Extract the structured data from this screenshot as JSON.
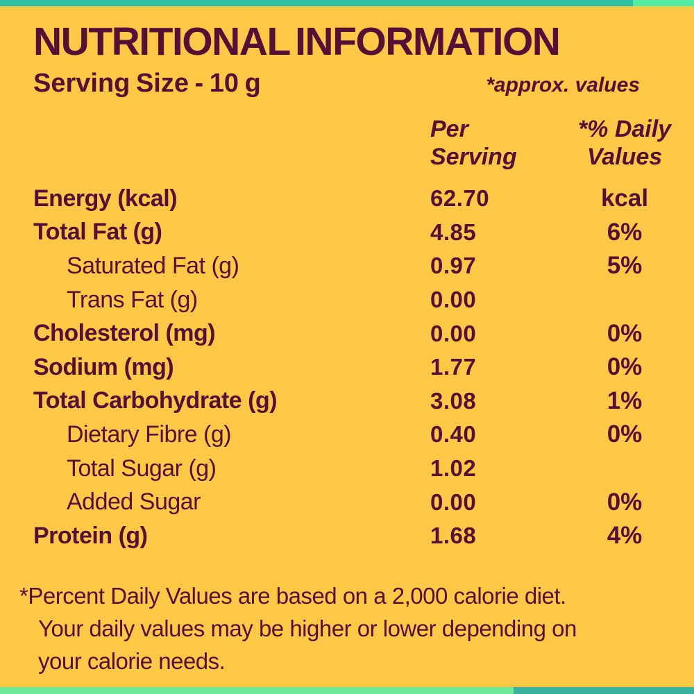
{
  "theme": {
    "background": "#FCC845",
    "text": "#561038",
    "top_strip_teal": "#2FBFA3",
    "top_strip_green": "#55EEA1",
    "bottom_strip_green": "#6EE897",
    "bottom_strip_teal": "#3AB39D"
  },
  "header": {
    "title": "NUTRITIONAL INFORMATION",
    "serving_size": "Serving Size - 10 g",
    "approx_note": "*approx. values"
  },
  "table": {
    "columns": {
      "per_serving": "Per Serving",
      "daily_values": "*% Daily Values"
    },
    "rows": [
      {
        "label": "Energy (kcal)",
        "indent": false,
        "per_serving": "62.70",
        "daily": "kcal"
      },
      {
        "label": "Total Fat (g)",
        "indent": false,
        "per_serving": "4.85",
        "daily": "6%"
      },
      {
        "label": "Saturated Fat (g)",
        "indent": true,
        "per_serving": "0.97",
        "daily": "5%"
      },
      {
        "label": "Trans Fat (g)",
        "indent": true,
        "per_serving": "0.00",
        "daily": ""
      },
      {
        "label": "Cholesterol (mg)",
        "indent": false,
        "per_serving": "0.00",
        "daily": "0%"
      },
      {
        "label": "Sodium (mg)",
        "indent": false,
        "per_serving": "1.77",
        "daily": "0%"
      },
      {
        "label": "Total Carbohydrate (g)",
        "indent": false,
        "per_serving": "3.08",
        "daily": "1%"
      },
      {
        "label": "Dietary Fibre (g)",
        "indent": true,
        "per_serving": "0.40",
        "daily": "0%"
      },
      {
        "label": "Total Sugar (g)",
        "indent": true,
        "per_serving": "1.02",
        "daily": ""
      },
      {
        "label": "Added Sugar",
        "indent": true,
        "per_serving": "0.00",
        "daily": "0%"
      },
      {
        "label": "Protein (g)",
        "indent": false,
        "per_serving": "1.68",
        "daily": "4%"
      }
    ]
  },
  "footnote": {
    "lines": [
      "*Percent Daily Values are based on a 2,000 calorie diet.",
      "Your daily values may be higher or lower depending on",
      "your calorie needs."
    ]
  }
}
